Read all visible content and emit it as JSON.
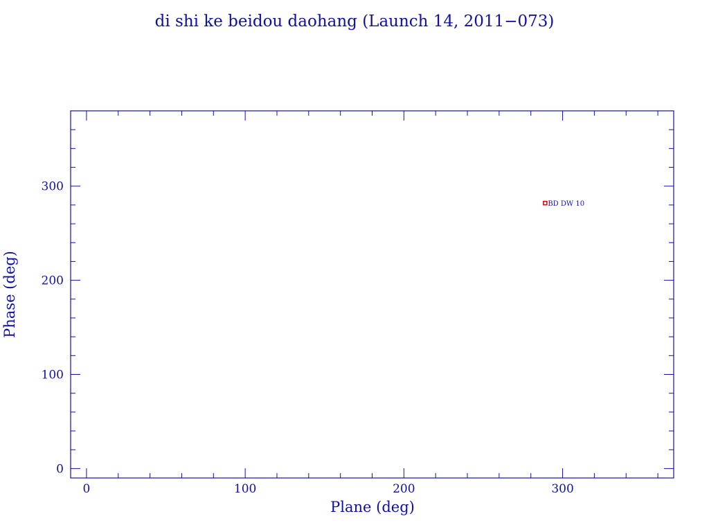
{
  "chart_data": {
    "type": "scatter",
    "title": "di shi ke beidou daohang (Launch 14, 2011−073)",
    "xlabel": "Plane (deg)",
    "ylabel": "Phase (deg)",
    "xlim": [
      -10,
      370
    ],
    "ylim": [
      -10,
      380
    ],
    "xticks": [
      0,
      100,
      200,
      300
    ],
    "yticks": [
      0,
      100,
      200,
      300
    ],
    "xtick_labels": [
      "0",
      "100",
      "200",
      "300"
    ],
    "ytick_labels": [
      "0",
      "100",
      "200",
      "300"
    ],
    "minor_tick_step": 20,
    "grid": false,
    "points": [
      {
        "x": 289,
        "y": 282,
        "label": "BD DW 10",
        "color": "#e00000"
      }
    ],
    "colors": {
      "axes": "#1010a0",
      "text": "#1010a0",
      "marker": "#e00000"
    }
  }
}
